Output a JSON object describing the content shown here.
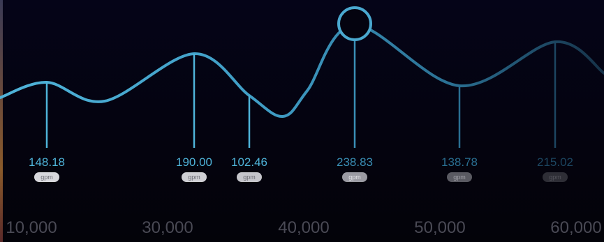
{
  "chart_data": {
    "type": "line",
    "unit": "gpm",
    "x_ticks": [
      "10,000",
      "30,000",
      "40,000",
      "50,000",
      "60,000"
    ],
    "points": [
      {
        "label": "148.18",
        "unit": "gpm"
      },
      {
        "label": "190.00",
        "unit": "gpm"
      },
      {
        "label": "102.46",
        "unit": "gpm"
      },
      {
        "label": "238.83",
        "unit": "gpm",
        "highlighted": true
      },
      {
        "label": "138.78",
        "unit": "gpm"
      },
      {
        "label": "215.02",
        "unit": "gpm"
      }
    ],
    "colors": {
      "line": "#4fb3d9",
      "background": "#04030f"
    }
  }
}
